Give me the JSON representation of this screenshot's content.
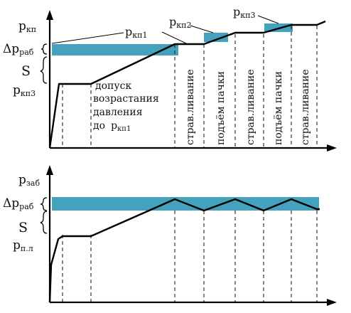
{
  "colors": {
    "band": "#3a9db8",
    "line": "#000000"
  },
  "top": {
    "y_axis_label": "р",
    "y_axis_sub": "кп",
    "delta_label": "Δр",
    "delta_sub": "раб",
    "s_label": "S",
    "p_kp3_left": "р",
    "p_kp3_left_sub": "кп3",
    "p_kp1_label": "р",
    "p_kp1_sub": "кп1",
    "p_kp2_label": "р",
    "p_kp2_sub": "кп2",
    "p_kp3_label": "р",
    "p_kp3_sub": "кп3",
    "note_line1": "допуск",
    "note_line2": "возрастания",
    "note_line3": "давления",
    "note_line4": "до",
    "note_line4_p": "р",
    "note_line4_sub": "кп1",
    "stage_1": "страв.ливание",
    "stage_2": "подъём пачки",
    "stage_3": "страв.ливание",
    "stage_4": "подъём пачки",
    "stage_5": "страв.ливание"
  },
  "bottom": {
    "y_axis_label": "р",
    "y_axis_sub": "заб",
    "delta_label": "Δр",
    "delta_sub": "раб",
    "s_label": "S",
    "p_pl_label": "р",
    "p_pl_sub": "п.л"
  }
}
